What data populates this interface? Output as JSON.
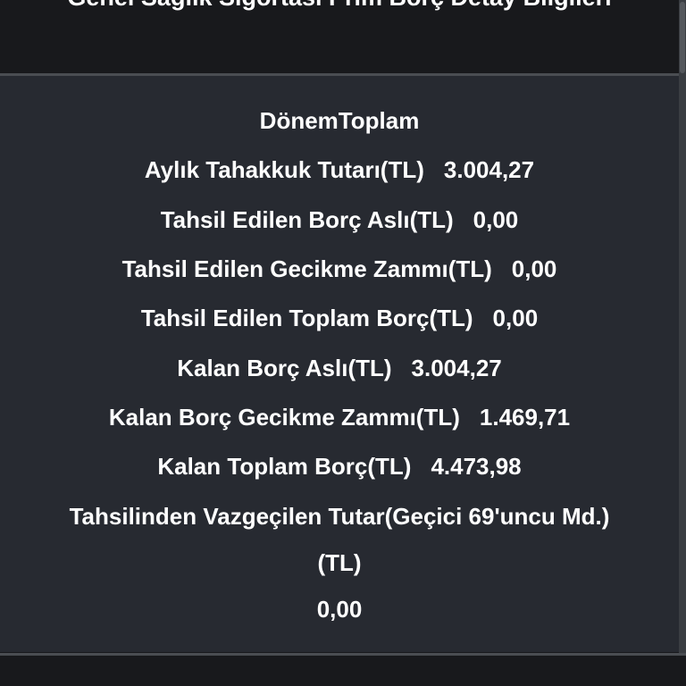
{
  "header": {
    "title": "Genel Sağlık Sigortası Prim Borç Detay Bilgileri"
  },
  "details": {
    "period_label": "DönemToplam",
    "rows": [
      {
        "label": "Aylık Tahakkuk Tutarı(TL)",
        "value": "3.004,27"
      },
      {
        "label": "Tahsil Edilen Borç Aslı(TL)",
        "value": "0,00"
      },
      {
        "label": "Tahsil Edilen Gecikme Zammı(TL)",
        "value": "0,00"
      },
      {
        "label": "Tahsil Edilen Toplam Borç(TL)",
        "value": "0,00"
      },
      {
        "label": "Kalan Borç Aslı(TL)",
        "value": "3.004,27"
      },
      {
        "label": "Kalan Borç Gecikme Zammı(TL)",
        "value": "1.469,71"
      },
      {
        "label": "Kalan Toplam Borç(TL)",
        "value": "4.473,98"
      }
    ],
    "waived": {
      "label_line1": "Tahsilinden Vazgeçilen Tutar(Geçici 69'uncu Md.)",
      "label_line2": "(TL)",
      "value": "0,00"
    }
  }
}
